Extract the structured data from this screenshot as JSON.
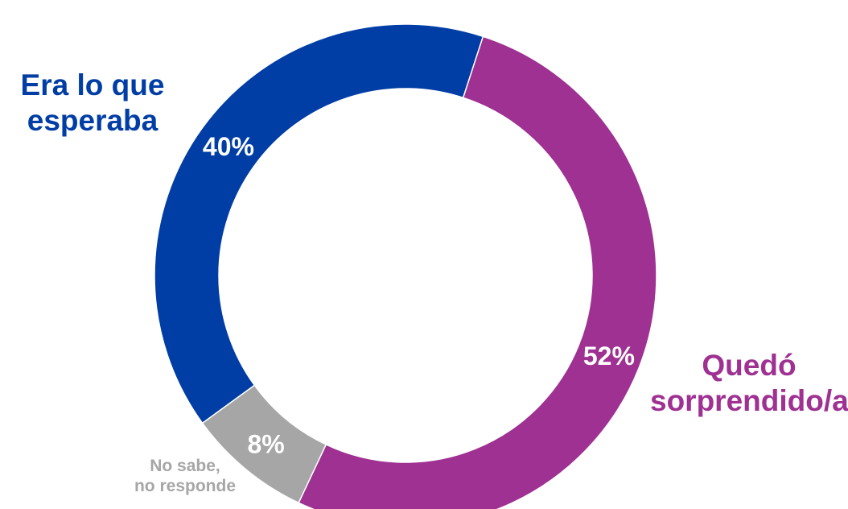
{
  "chart_data": {
    "type": "pie",
    "donut": true,
    "title": "",
    "categories": [
      "Era lo que esperaba",
      "Quedó sorprendido/a",
      "No sabe, no responde"
    ],
    "values": [
      40,
      52,
      8
    ],
    "value_labels": [
      "40%",
      "52%",
      "8%"
    ],
    "label_lines": [
      [
        "Era lo que",
        "esperaba"
      ],
      [
        "Quedó",
        "sorprendido/a"
      ],
      [
        "No sabe,",
        "no responde"
      ]
    ],
    "colors": [
      "#003DA5",
      "#9E3192",
      "#A6A6A6"
    ],
    "label_colors": [
      "#003DA5",
      "#9E3192",
      "#A6A6A6"
    ],
    "value_label_color": "#FFFFFF",
    "start_angle_deg": 234
  }
}
